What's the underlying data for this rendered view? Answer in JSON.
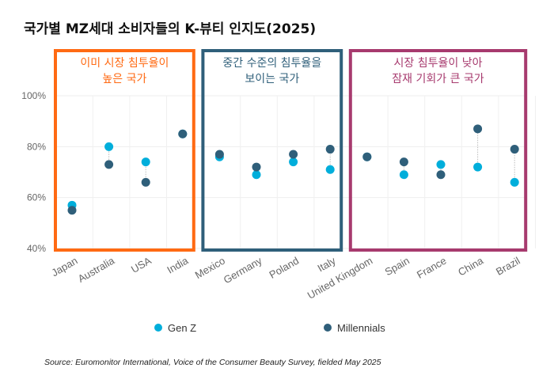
{
  "chart_data": {
    "type": "scatter",
    "title": "국가별 MZ세대 소비자들의 K-뷰티 인지도(2025)",
    "categories": [
      "Japan",
      "Australia",
      "USA",
      "India",
      "Mexico",
      "Germany",
      "Poland",
      "Italy",
      "United Kingdom",
      "Spain",
      "France",
      "China",
      "Brazil"
    ],
    "series": [
      {
        "name": "Gen Z",
        "color": "#00AEDB",
        "values": [
          57,
          80,
          74,
          85,
          76,
          69,
          74,
          71,
          76,
          69,
          73,
          72,
          66
        ]
      },
      {
        "name": "Millennials",
        "color": "#2F5F7A",
        "values": [
          55,
          73,
          66,
          85,
          77,
          72,
          77,
          79,
          76,
          74,
          69,
          87,
          79
        ]
      }
    ],
    "ylim": [
      40,
      100
    ],
    "yticks": [
      "40%",
      "60%",
      "80%",
      "100%"
    ],
    "grid": true,
    "legend": "bottom",
    "groups": [
      {
        "label_lines": [
          "이미 시장 침투율이",
          "높은 국가"
        ],
        "color": "#FF6A13",
        "from": 0,
        "to": 3
      },
      {
        "label_lines": [
          "중간 수준의 침투율을",
          "보이는 국가"
        ],
        "color": "#2F5F7A",
        "from": 4,
        "to": 7
      },
      {
        "label_lines": [
          "시장 침투율이 낮아",
          "잠재 기회가 큰 국가"
        ],
        "color": "#A73A6E",
        "from": 8,
        "to": 12
      }
    ],
    "source": "Source: Euromonitor International, Voice of the Consumer Beauty Survey, fielded May 2025"
  }
}
